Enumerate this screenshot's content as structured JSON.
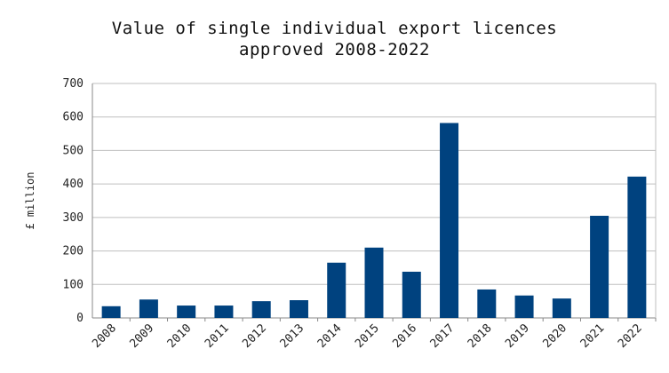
{
  "chart_data": {
    "type": "bar",
    "title_line1": "Value of single individual export licences",
    "title_line2": "approved 2008-2022",
    "xlabel": "",
    "ylabel": "£ million",
    "ylim": [
      0,
      700
    ],
    "yticks": [
      0,
      100,
      200,
      300,
      400,
      500,
      600,
      700
    ],
    "grid": true,
    "legend": "none",
    "categories": [
      "2008",
      "2009",
      "2010",
      "2011",
      "2012",
      "2013",
      "2014",
      "2015",
      "2016",
      "2017",
      "2018",
      "2019",
      "2020",
      "2021",
      "2022"
    ],
    "values": [
      35,
      55,
      37,
      37,
      50,
      53,
      165,
      210,
      138,
      582,
      85,
      67,
      58,
      305,
      422
    ],
    "bar_color": "#00427F",
    "grid_color": "#BFBFBF"
  }
}
